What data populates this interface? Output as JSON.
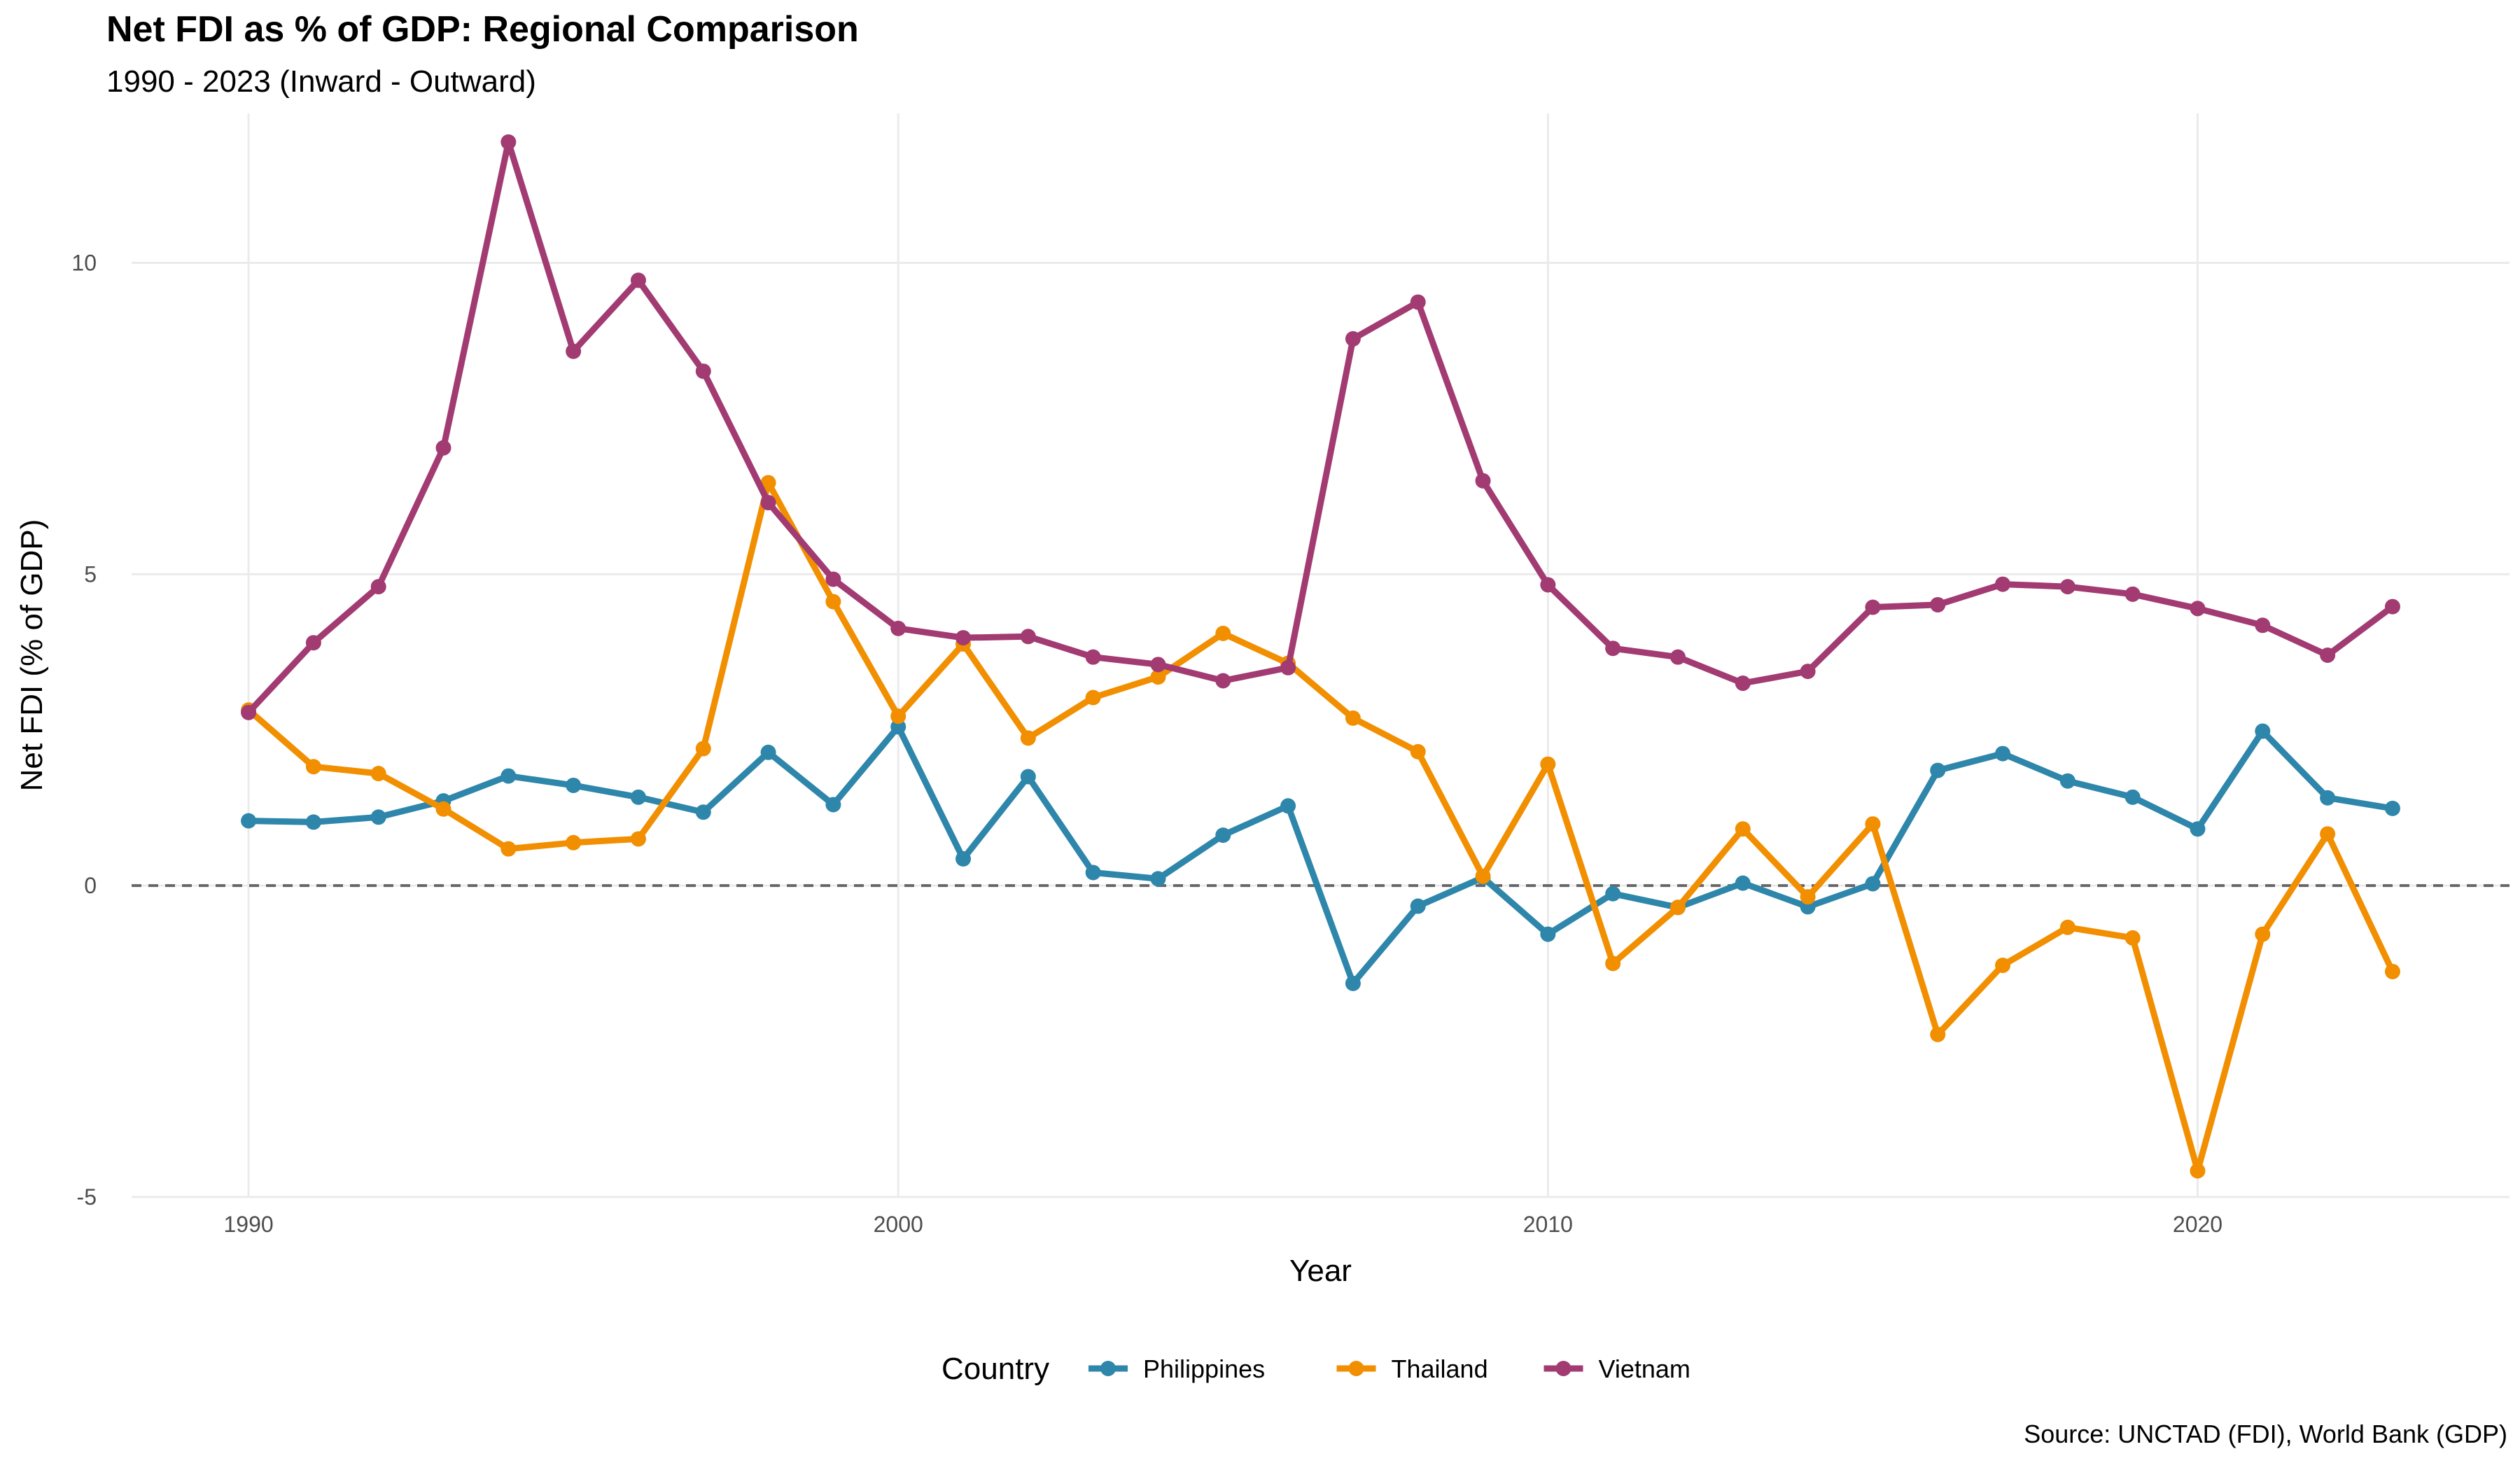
{
  "title": "Net FDI as % of GDP: Regional Comparison",
  "subtitle": "1990 - 2023 (Inward - Outward)",
  "caption": "Source: UNCTAD (FDI), World Bank (GDP)",
  "chart_data": {
    "type": "line",
    "xlabel": "Year",
    "ylabel": "Net FDI (% of GDP)",
    "xlim": [
      1988.2,
      2024.8
    ],
    "ylim": [
      -5.0,
      12.4
    ],
    "x_ticks": [
      1990,
      2000,
      2010,
      2020
    ],
    "y_ticks": [
      -5,
      0,
      5,
      10
    ],
    "y_tick_labels": [
      "-5",
      "0",
      "5",
      "10"
    ],
    "grid": true,
    "reference_line": {
      "y": 0,
      "style": "dashed",
      "color": "#666666"
    },
    "legend": {
      "title": "Country",
      "position": "bottom"
    },
    "x": [
      1990,
      1991,
      1992,
      1993,
      1994,
      1995,
      1996,
      1997,
      1998,
      1999,
      2000,
      2001,
      2002,
      2003,
      2004,
      2005,
      2006,
      2007,
      2008,
      2009,
      2010,
      2011,
      2012,
      2013,
      2014,
      2015,
      2016,
      2017,
      2018,
      2019,
      2020,
      2021,
      2022,
      2023
    ],
    "series": [
      {
        "name": "Philippines",
        "color": "#2e86ab",
        "values": [
          1.04,
          1.02,
          1.1,
          1.36,
          1.76,
          1.61,
          1.42,
          1.18,
          2.14,
          1.3,
          2.55,
          0.43,
          1.75,
          0.21,
          0.11,
          0.81,
          1.28,
          -1.57,
          -0.33,
          0.13,
          -0.78,
          -0.13,
          -0.35,
          0.04,
          -0.34,
          0.03,
          1.85,
          2.12,
          1.68,
          1.42,
          0.91,
          2.48,
          1.41,
          1.24
        ]
      },
      {
        "name": "Thailand",
        "color": "#f18f01",
        "values": [
          2.82,
          1.91,
          1.8,
          1.23,
          0.59,
          0.69,
          0.75,
          2.2,
          6.47,
          4.56,
          2.72,
          3.88,
          2.37,
          3.02,
          3.35,
          4.05,
          3.57,
          2.69,
          2.15,
          0.15,
          1.95,
          -1.25,
          -0.35,
          0.91,
          -0.18,
          0.99,
          -2.39,
          -1.28,
          -0.67,
          -0.84,
          -4.58,
          -0.78,
          0.83,
          -1.38
        ]
      },
      {
        "name": "Vietnam",
        "color": "#a23b72",
        "values": [
          2.78,
          3.9,
          4.8,
          7.03,
          11.94,
          8.58,
          9.72,
          8.26,
          6.15,
          4.92,
          4.13,
          3.98,
          4.0,
          3.67,
          3.55,
          3.29,
          3.5,
          8.78,
          9.37,
          6.5,
          4.83,
          3.81,
          3.67,
          3.25,
          3.44,
          4.47,
          4.51,
          4.84,
          4.8,
          4.68,
          4.45,
          4.18,
          3.7,
          4.48
        ]
      }
    ]
  }
}
